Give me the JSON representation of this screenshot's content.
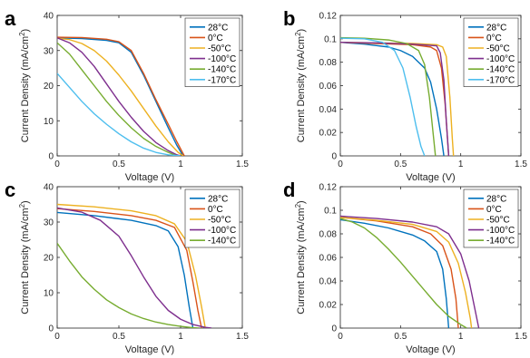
{
  "chart_data": [
    {
      "panel_label": "a",
      "type": "line",
      "xlabel": "Voltage (V)",
      "ylabel_main": "Current Density (mA/cm",
      "ylabel_sup": "2",
      "ylabel_end": ")",
      "xlim": [
        0,
        1.5
      ],
      "ylim": [
        0,
        40
      ],
      "xticks": [
        "0",
        "0.5",
        "1",
        "1.5"
      ],
      "yticks": [
        "0",
        "10",
        "20",
        "30",
        "40"
      ],
      "grid": false,
      "legend": "top-right",
      "series": [
        {
          "name": "28°C",
          "color": "#0072BD",
          "points": [
            [
              0,
              33.6
            ],
            [
              0.2,
              33.4
            ],
            [
              0.4,
              32.9
            ],
            [
              0.5,
              32.2
            ],
            [
              0.6,
              29.5
            ],
            [
              0.7,
              23
            ],
            [
              0.8,
              15.5
            ],
            [
              0.9,
              8
            ],
            [
              0.97,
              3
            ],
            [
              1.02,
              0
            ]
          ]
        },
        {
          "name": "0°C",
          "color": "#D95319",
          "points": [
            [
              0,
              33.8
            ],
            [
              0.2,
              33.7
            ],
            [
              0.4,
              33.2
            ],
            [
              0.5,
              32.5
            ],
            [
              0.6,
              30
            ],
            [
              0.7,
              23.5
            ],
            [
              0.8,
              16
            ],
            [
              0.9,
              9
            ],
            [
              0.97,
              4
            ],
            [
              1.03,
              0
            ]
          ]
        },
        {
          "name": "-50°C",
          "color": "#EDB120",
          "points": [
            [
              0,
              33.5
            ],
            [
              0.1,
              33.1
            ],
            [
              0.2,
              32
            ],
            [
              0.3,
              30
            ],
            [
              0.4,
              27
            ],
            [
              0.5,
              23
            ],
            [
              0.6,
              18.5
            ],
            [
              0.7,
              13.5
            ],
            [
              0.8,
              8.5
            ],
            [
              0.9,
              4
            ],
            [
              0.98,
              1
            ],
            [
              1.02,
              0
            ]
          ]
        },
        {
          "name": "-100°C",
          "color": "#7E2F8E",
          "points": [
            [
              0,
              33.6
            ],
            [
              0.1,
              32.2
            ],
            [
              0.2,
              29.5
            ],
            [
              0.3,
              25.5
            ],
            [
              0.4,
              20.5
            ],
            [
              0.5,
              15.5
            ],
            [
              0.6,
              11
            ],
            [
              0.7,
              7
            ],
            [
              0.8,
              3.8
            ],
            [
              0.9,
              1.5
            ],
            [
              0.97,
              0.3
            ],
            [
              1.0,
              0
            ]
          ]
        },
        {
          "name": "-140°C",
          "color": "#77AC30",
          "points": [
            [
              0,
              32.2
            ],
            [
              0.1,
              29
            ],
            [
              0.2,
              24.5
            ],
            [
              0.3,
              20
            ],
            [
              0.4,
              15.5
            ],
            [
              0.5,
              11.5
            ],
            [
              0.6,
              8
            ],
            [
              0.7,
              5
            ],
            [
              0.8,
              2.7
            ],
            [
              0.9,
              1
            ],
            [
              0.95,
              0.3
            ],
            [
              0.97,
              0
            ]
          ]
        },
        {
          "name": "-170°C",
          "color": "#4DBEEE",
          "points": [
            [
              0,
              23.5
            ],
            [
              0.1,
              19.5
            ],
            [
              0.2,
              15.5
            ],
            [
              0.3,
              12
            ],
            [
              0.4,
              9
            ],
            [
              0.5,
              6.3
            ],
            [
              0.6,
              4
            ],
            [
              0.7,
              2.2
            ],
            [
              0.8,
              1
            ],
            [
              0.9,
              0.3
            ],
            [
              1.0,
              0
            ]
          ]
        }
      ]
    },
    {
      "panel_label": "b",
      "type": "line",
      "xlabel": "Voltage (V)",
      "ylabel_main": "Current Density (mA/cm",
      "ylabel_sup": "2",
      "ylabel_end": ")",
      "xlim": [
        0,
        1.5
      ],
      "ylim": [
        0,
        0.12
      ],
      "xticks": [
        "0",
        "0.5",
        "1",
        "1.5"
      ],
      "yticks": [
        "0",
        "0.02",
        "0.04",
        "0.06",
        "0.08",
        "0.1",
        "0.12"
      ],
      "grid": false,
      "legend": "top-right",
      "series": [
        {
          "name": "28°C",
          "color": "#0072BD",
          "points": [
            [
              0,
              0.097
            ],
            [
              0.2,
              0.0955
            ],
            [
              0.4,
              0.093
            ],
            [
              0.5,
              0.09
            ],
            [
              0.6,
              0.085
            ],
            [
              0.7,
              0.075
            ],
            [
              0.75,
              0.063
            ],
            [
              0.8,
              0.04
            ],
            [
              0.84,
              0.015
            ],
            [
              0.86,
              0
            ]
          ]
        },
        {
          "name": "0°C",
          "color": "#D95319",
          "points": [
            [
              0,
              0.097
            ],
            [
              0.3,
              0.096
            ],
            [
              0.6,
              0.095
            ],
            [
              0.75,
              0.093
            ],
            [
              0.8,
              0.09
            ],
            [
              0.84,
              0.075
            ],
            [
              0.87,
              0.045
            ],
            [
              0.89,
              0.015
            ],
            [
              0.9,
              0
            ]
          ]
        },
        {
          "name": "-50°C",
          "color": "#EDB120",
          "points": [
            [
              0,
              0.097
            ],
            [
              0.3,
              0.0965
            ],
            [
              0.6,
              0.096
            ],
            [
              0.8,
              0.095
            ],
            [
              0.85,
              0.093
            ],
            [
              0.88,
              0.085
            ],
            [
              0.91,
              0.05
            ],
            [
              0.93,
              0.015
            ],
            [
              0.94,
              0
            ]
          ]
        },
        {
          "name": "-100°C",
          "color": "#7E2F8E",
          "points": [
            [
              0,
              0.097
            ],
            [
              0.3,
              0.0965
            ],
            [
              0.6,
              0.0955
            ],
            [
              0.8,
              0.094
            ],
            [
              0.83,
              0.088
            ],
            [
              0.86,
              0.065
            ],
            [
              0.88,
              0.03
            ],
            [
              0.9,
              0
            ]
          ]
        },
        {
          "name": "-140°C",
          "color": "#77AC30",
          "points": [
            [
              0,
              0.101
            ],
            [
              0.2,
              0.1005
            ],
            [
              0.4,
              0.099
            ],
            [
              0.55,
              0.096
            ],
            [
              0.65,
              0.09
            ],
            [
              0.7,
              0.078
            ],
            [
              0.74,
              0.05
            ],
            [
              0.77,
              0.02
            ],
            [
              0.79,
              0
            ]
          ]
        },
        {
          "name": "-170°C",
          "color": "#4DBEEE",
          "points": [
            [
              0,
              0.1005
            ],
            [
              0.2,
              0.1
            ],
            [
              0.35,
              0.097
            ],
            [
              0.45,
              0.09
            ],
            [
              0.52,
              0.075
            ],
            [
              0.58,
              0.05
            ],
            [
              0.63,
              0.025
            ],
            [
              0.67,
              0.008
            ],
            [
              0.7,
              0
            ]
          ]
        }
      ]
    },
    {
      "panel_label": "c",
      "type": "line",
      "xlabel": "Voltage (V)",
      "ylabel_main": "Current Density (mA/cm",
      "ylabel_sup": "2",
      "ylabel_end": ")",
      "xlim": [
        0,
        1.5
      ],
      "ylim": [
        0,
        40
      ],
      "xticks": [
        "0",
        "0.5",
        "1",
        "1.5"
      ],
      "yticks": [
        "0",
        "10",
        "20",
        "30",
        "40"
      ],
      "grid": false,
      "legend": "top-right",
      "series": [
        {
          "name": "28°C",
          "color": "#0072BD",
          "points": [
            [
              0,
              32.7
            ],
            [
              0.3,
              31.8
            ],
            [
              0.6,
              30.5
            ],
            [
              0.8,
              29
            ],
            [
              0.9,
              27.5
            ],
            [
              0.98,
              23
            ],
            [
              1.03,
              15
            ],
            [
              1.07,
              6
            ],
            [
              1.1,
              0
            ]
          ]
        },
        {
          "name": "0°C",
          "color": "#D95319",
          "points": [
            [
              0,
              33.8
            ],
            [
              0.3,
              33
            ],
            [
              0.6,
              31.8
            ],
            [
              0.8,
              30.5
            ],
            [
              0.95,
              28.5
            ],
            [
              1.05,
              22
            ],
            [
              1.1,
              13
            ],
            [
              1.14,
              5
            ],
            [
              1.17,
              0
            ]
          ]
        },
        {
          "name": "-50°C",
          "color": "#EDB120",
          "points": [
            [
              0,
              35
            ],
            [
              0.3,
              34.3
            ],
            [
              0.6,
              33.2
            ],
            [
              0.8,
              31.8
            ],
            [
              0.95,
              29.5
            ],
            [
              1.05,
              24.5
            ],
            [
              1.12,
              15
            ],
            [
              1.17,
              6
            ],
            [
              1.2,
              0
            ]
          ]
        },
        {
          "name": "-100°C",
          "color": "#7E2F8E",
          "points": [
            [
              0,
              34
            ],
            [
              0.2,
              32.8
            ],
            [
              0.35,
              30.5
            ],
            [
              0.5,
              26
            ],
            [
              0.6,
              20.5
            ],
            [
              0.7,
              14.5
            ],
            [
              0.8,
              9
            ],
            [
              0.9,
              5
            ],
            [
              1.0,
              2.5
            ],
            [
              1.1,
              1
            ],
            [
              1.2,
              0.2
            ],
            [
              1.25,
              0
            ]
          ]
        },
        {
          "name": "-140°C",
          "color": "#77AC30",
          "points": [
            [
              0,
              24
            ],
            [
              0.1,
              19
            ],
            [
              0.2,
              14.5
            ],
            [
              0.3,
              11
            ],
            [
              0.4,
              8
            ],
            [
              0.5,
              5.8
            ],
            [
              0.6,
              4
            ],
            [
              0.7,
              2.7
            ],
            [
              0.8,
              1.7
            ],
            [
              0.9,
              1
            ],
            [
              1.0,
              0.5
            ],
            [
              1.1,
              0.1
            ],
            [
              1.15,
              0
            ]
          ]
        }
      ]
    },
    {
      "panel_label": "d",
      "type": "line",
      "xlabel": "Voltage (V)",
      "ylabel_main": "Current Density (mA/cm",
      "ylabel_sup": "2",
      "ylabel_end": ")",
      "xlim": [
        0,
        1.5
      ],
      "ylim": [
        0,
        0.12
      ],
      "xticks": [
        "0",
        "0.5",
        "1",
        "1.5"
      ],
      "yticks": [
        "0",
        "0.02",
        "0.04",
        "0.06",
        "0.08",
        "0.1",
        "0.12"
      ],
      "grid": false,
      "legend": "top-right",
      "series": [
        {
          "name": "28°C",
          "color": "#0072BD",
          "points": [
            [
              0,
              0.092
            ],
            [
              0.2,
              0.089
            ],
            [
              0.4,
              0.085
            ],
            [
              0.6,
              0.079
            ],
            [
              0.7,
              0.074
            ],
            [
              0.8,
              0.065
            ],
            [
              0.85,
              0.05
            ],
            [
              0.88,
              0.025
            ],
            [
              0.9,
              0
            ]
          ]
        },
        {
          "name": "0°C",
          "color": "#D95319",
          "points": [
            [
              0,
              0.094
            ],
            [
              0.3,
              0.091
            ],
            [
              0.6,
              0.086
            ],
            [
              0.75,
              0.08
            ],
            [
              0.85,
              0.07
            ],
            [
              0.92,
              0.05
            ],
            [
              0.96,
              0.025
            ],
            [
              0.98,
              0
            ]
          ]
        },
        {
          "name": "-50°C",
          "color": "#EDB120",
          "points": [
            [
              0,
              0.094
            ],
            [
              0.3,
              0.0915
            ],
            [
              0.6,
              0.088
            ],
            [
              0.8,
              0.082
            ],
            [
              0.9,
              0.073
            ],
            [
              0.98,
              0.055
            ],
            [
              1.04,
              0.03
            ],
            [
              1.08,
              0.008
            ],
            [
              1.09,
              0
            ]
          ]
        },
        {
          "name": "-100°C",
          "color": "#7E2F8E",
          "points": [
            [
              0,
              0.095
            ],
            [
              0.3,
              0.093
            ],
            [
              0.6,
              0.09
            ],
            [
              0.8,
              0.086
            ],
            [
              0.9,
              0.08
            ],
            [
              1.0,
              0.063
            ],
            [
              1.07,
              0.04
            ],
            [
              1.12,
              0.015
            ],
            [
              1.15,
              0
            ]
          ]
        },
        {
          "name": "-140°C",
          "color": "#77AC30",
          "points": [
            [
              0,
              0.093
            ],
            [
              0.1,
              0.09
            ],
            [
              0.2,
              0.085
            ],
            [
              0.3,
              0.077
            ],
            [
              0.4,
              0.067
            ],
            [
              0.5,
              0.056
            ],
            [
              0.6,
              0.044
            ],
            [
              0.7,
              0.032
            ],
            [
              0.8,
              0.02
            ],
            [
              0.9,
              0.01
            ],
            [
              1.0,
              0.003
            ],
            [
              1.05,
              0
            ]
          ]
        }
      ]
    }
  ]
}
